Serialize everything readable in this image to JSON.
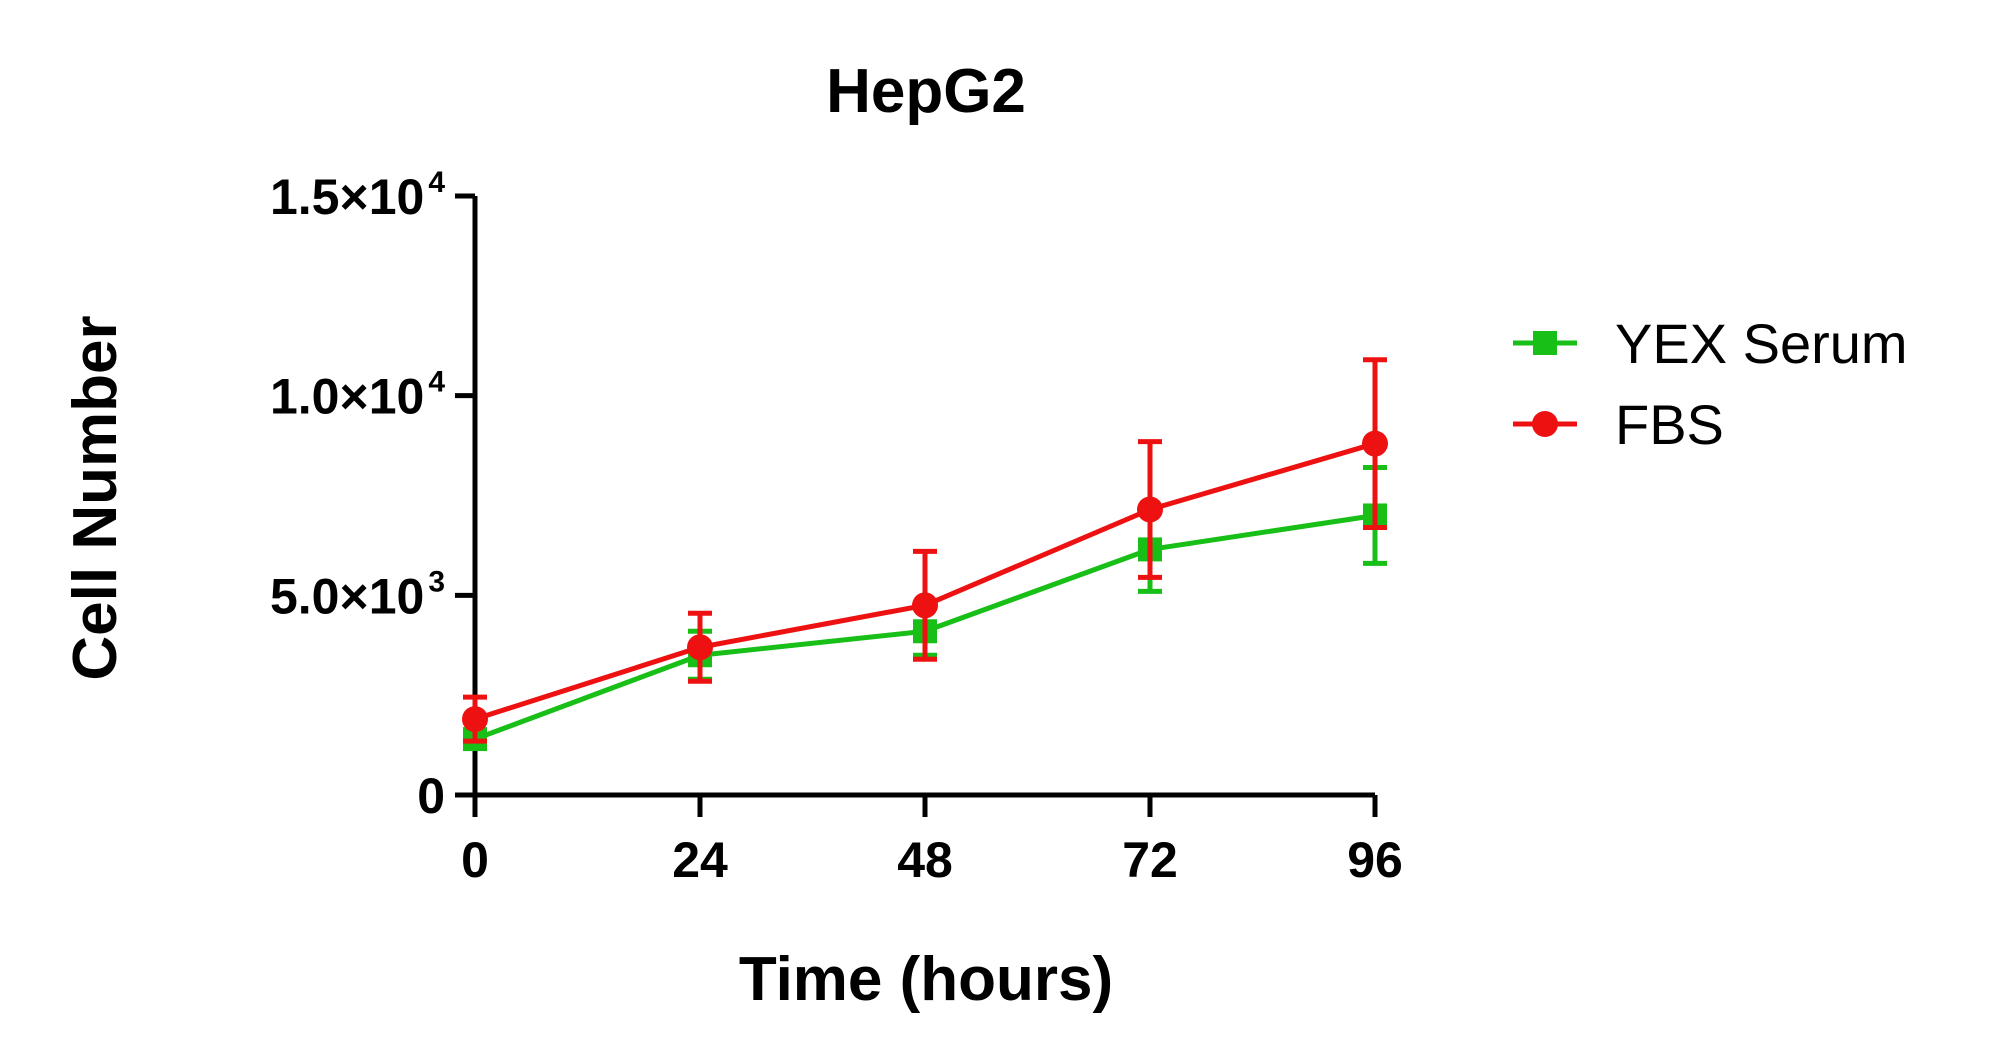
{
  "chart_data": {
    "type": "line",
    "title": "HepG2",
    "xlabel": "Time (hours)",
    "ylabel": "Cell Number",
    "x": [
      0,
      24,
      48,
      72,
      96
    ],
    "xticks": [
      "0",
      "24",
      "48",
      "72",
      "96"
    ],
    "ylim": [
      0,
      15000
    ],
    "yticks": [
      {
        "value": 0,
        "base": "0",
        "exp": ""
      },
      {
        "value": 5000,
        "base": "5.0×10",
        "exp": "3"
      },
      {
        "value": 10000,
        "base": "1.0×10",
        "exp": "4"
      },
      {
        "value": 15000,
        "base": "1.5×10",
        "exp": "4"
      }
    ],
    "series": [
      {
        "name": "YEX Serum",
        "color": "#17bf17",
        "marker": "square",
        "values": [
          1400,
          3500,
          4100,
          6150,
          7000
        ],
        "error": [
          200,
          600,
          600,
          1050,
          1200
        ]
      },
      {
        "name": "FBS",
        "color": "#ee1111",
        "marker": "circle",
        "values": [
          1900,
          3700,
          4750,
          7150,
          8800
        ],
        "error": [
          550,
          850,
          1350,
          1700,
          2100
        ]
      }
    ],
    "legend": "right"
  }
}
